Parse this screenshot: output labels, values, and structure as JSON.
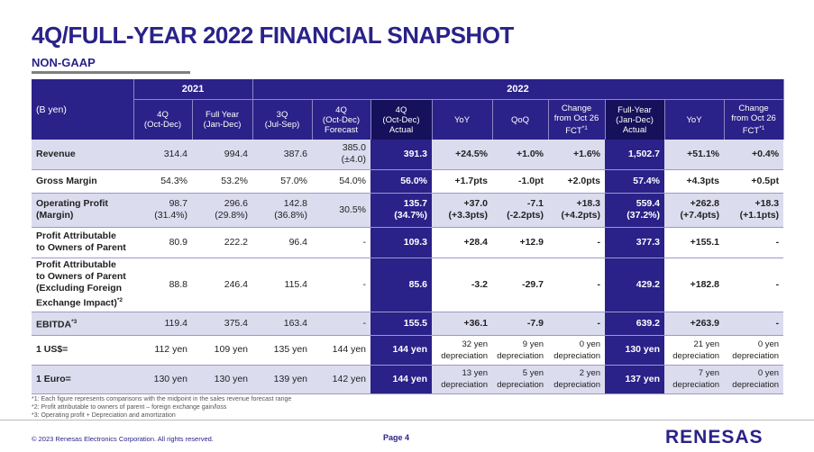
{
  "title": "4Q/FULL-YEAR 2022 FINANCIAL SNAPSHOT",
  "subtitle": "NON-GAAP",
  "unit_label": "(B yen)",
  "year_headers": {
    "y2021": "2021",
    "y2022": "2022"
  },
  "columns": {
    "c1": [
      "4Q",
      "(Oct-Dec)"
    ],
    "c2": [
      "Full Year",
      "(Jan-Dec)"
    ],
    "c3": [
      "3Q",
      "(Jul-Sep)"
    ],
    "c4": [
      "4Q",
      "(Oct-Dec)",
      "Forecast"
    ],
    "c5": [
      "4Q",
      "(Oct-Dec)",
      "Actual"
    ],
    "c6": "YoY",
    "c7": "QoQ",
    "c8": [
      "Change",
      "from Oct 26",
      "FCT"
    ],
    "c9": [
      "Full-Year",
      "(Jan-Dec)",
      "Actual"
    ],
    "c10": "YoY",
    "c11": [
      "Change",
      "from Oct 26",
      "FCT"
    ]
  },
  "col_sup": {
    "c8": "*1",
    "c11": "*1"
  },
  "rows": {
    "revenue": {
      "label": "Revenue",
      "c1": "314.4",
      "c2": "994.4",
      "c3": "387.6",
      "c4a": "385.0",
      "c4b": "(±4.0)",
      "c5": "391.3",
      "c6": "+24.5%",
      "c7": "+1.0%",
      "c8": "+1.6%",
      "c9": "1,502.7",
      "c10": "+51.1%",
      "c11": "+0.4%"
    },
    "gross": {
      "label": "Gross Margin",
      "c1": "54.3%",
      "c2": "53.2%",
      "c3": "57.0%",
      "c4": "54.0%",
      "c5": "56.0%",
      "c6": "+1.7pts",
      "c7": "-1.0pt",
      "c8": "+2.0pts",
      "c9": "57.4%",
      "c10": "+4.3pts",
      "c11": "+0.5pt"
    },
    "opprofit": {
      "label_a": "Operating Profit",
      "label_b": "(Margin)",
      "c1a": "98.7",
      "c1b": "(31.4%)",
      "c2a": "296.6",
      "c2b": "(29.8%)",
      "c3a": "142.8",
      "c3b": "(36.8%)",
      "c4": "30.5%",
      "c5a": "135.7",
      "c5b": "(34.7%)",
      "c6a": "+37.0",
      "c6b": "(+3.3pts)",
      "c7a": "-7.1",
      "c7b": "(-2.2pts)",
      "c8a": "+18.3",
      "c8b": "(+4.2pts)",
      "c9a": "559.4",
      "c9b": "(37.2%)",
      "c10a": "+262.8",
      "c10b": "(+7.4pts)",
      "c11a": "+18.3",
      "c11b": "(+1.1pts)"
    },
    "profit_owner": {
      "label_a": "Profit Attributable",
      "label_b": "to Owners of Parent",
      "c1": "80.9",
      "c2": "222.2",
      "c3": "96.4",
      "c4": "-",
      "c5": "109.3",
      "c6": "+28.4",
      "c7": "+12.9",
      "c8": "-",
      "c9": "377.3",
      "c10": "+155.1",
      "c11": "-"
    },
    "profit_owner_ex": {
      "label_a": "Profit Attributable",
      "label_b": "to Owners of Parent",
      "label_c": "(Excluding Foreign",
      "label_d": "Exchange Impact)",
      "label_sup": "*2",
      "c1": "88.8",
      "c2": "246.4",
      "c3": "115.4",
      "c4": "-",
      "c5": "85.6",
      "c6": "-3.2",
      "c7": "-29.7",
      "c8": "-",
      "c9": "429.2",
      "c10": "+182.8",
      "c11": "-"
    },
    "ebitda": {
      "label": "EBITDA",
      "label_sup": "*3",
      "c1": "119.4",
      "c2": "375.4",
      "c3": "163.4",
      "c4": "-",
      "c5": "155.5",
      "c6": "+36.1",
      "c7": "-7.9",
      "c8": "-",
      "c9": "639.2",
      "c10": "+263.9",
      "c11": "-"
    },
    "usd": {
      "label": "1 US$=",
      "c1": "112 yen",
      "c2": "109 yen",
      "c3": "135 yen",
      "c4": "144 yen",
      "c5": "144 yen",
      "c6a": "32 yen",
      "c6b": "depreciation",
      "c7a": "9 yen",
      "c7b": "depreciation",
      "c8a": "0 yen",
      "c8b": "depreciation",
      "c9": "130 yen",
      "c10a": "21 yen",
      "c10b": "depreciation",
      "c11a": "0 yen",
      "c11b": "depreciation"
    },
    "euro": {
      "label": "1 Euro=",
      "c1": "130 yen",
      "c2": "130 yen",
      "c3": "139 yen",
      "c4": "142 yen",
      "c5": "144 yen",
      "c6a": "13 yen",
      "c6b": "depreciation",
      "c7a": "5 yen",
      "c7b": "depreciation",
      "c8a": "2 yen",
      "c8b": "depreciation",
      "c9": "137 yen",
      "c10a": "7 yen",
      "c10b": "depreciation",
      "c11a": "0 yen",
      "c11b": "depreciation"
    }
  },
  "notes": [
    "*1: Each figure represents comparisons with the midpoint in the sales revenue forecast range",
    "*2: Profit attributable to owners of parent – foreign exchange gain/loss",
    "*3: Operating profit + Depreciation and amortization"
  ],
  "footer": {
    "copyright": "© 2023 Renesas Electronics Corporation. All rights reserved.",
    "page": "Page 4",
    "logo": "RENESAS"
  },
  "colors": {
    "brand": "#2a2288",
    "row_shade": "#dcdcef"
  }
}
